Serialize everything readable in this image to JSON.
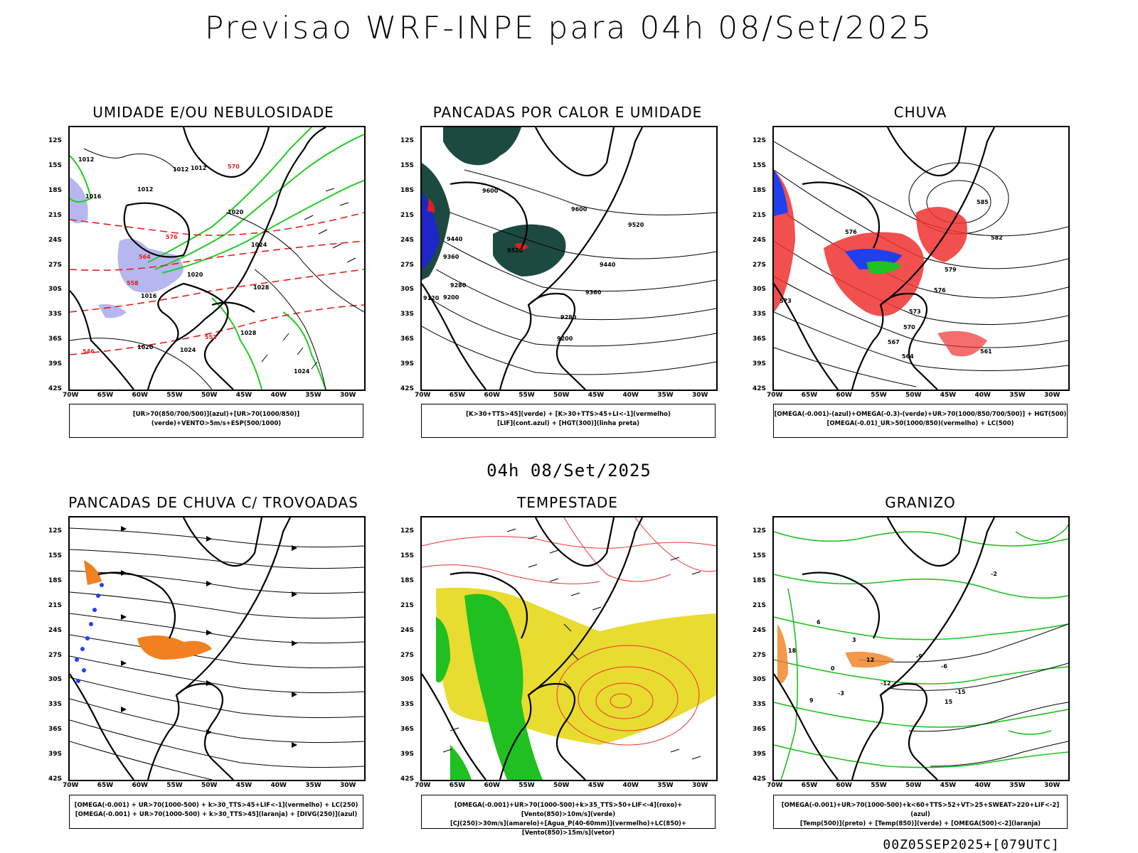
{
  "header": {
    "title": "Previsao WRF-INPE  para 04h 08/Set/2025"
  },
  "mid_label": "04h 08/Set/2025",
  "footer": "00Z05SEP2025+[079UTC]",
  "axes": {
    "lat_ticks": [
      "12S",
      "15S",
      "18S",
      "21S",
      "24S",
      "27S",
      "30S",
      "33S",
      "36S",
      "39S",
      "42S"
    ],
    "lon_ticks": [
      "70W",
      "65W",
      "60W",
      "55W",
      "50W",
      "45W",
      "40W",
      "35W",
      "30W"
    ]
  },
  "panels": [
    {
      "title": "UMIDADE E/OU NEBULOSIDADE",
      "legend": [
        "[UR>70(850/700/500)](azul)+[UR>70(1000/850)](verde)+VENTO>5m/s+ESP(500/1000)"
      ],
      "contour_labels": [
        "1012",
        "1012",
        "1016",
        "1020",
        "1020",
        "1024",
        "1028",
        "1028",
        "1020",
        "1024",
        "1024",
        "1012",
        "1012",
        "1016",
        "576",
        "570",
        "564",
        "558",
        "552",
        "546"
      ],
      "colors": {
        "blue": "#b7b7f0",
        "green": "#22cc22",
        "red": "#e02020"
      }
    },
    {
      "title": "PANCADAS POR CALOR E UMIDADE",
      "legend": [
        "[K>30+TTS>45](verde) + [K>30+TTS>45+LI<-1](vermelho)",
        "[LIF](cont.azul) + [HGT(300)](linha preta)"
      ],
      "contour_labels": [
        "9600",
        "9520",
        "9440",
        "9360",
        "9280",
        "9200",
        "9600",
        "9520",
        "9440",
        "9360",
        "9280",
        "9200",
        "9120"
      ],
      "colors": {
        "darkgreen": "#1c4a40",
        "red": "#e02020",
        "blue": "#2020e0"
      }
    },
    {
      "title": "CHUVA",
      "legend": [
        "[OMEGA(-0.001)-(azul)+OMEGA(-0.3)-(verde)+UR>70(1000/850/700/500)] + HGT(500)",
        "[OMEGA(-0.01)_UR>50(1000/850)(vermelho) + LC(500)"
      ],
      "contour_labels": [
        "585",
        "582",
        "579",
        "576",
        "573",
        "570",
        "567",
        "564",
        "561",
        "576",
        "573"
      ],
      "colors": {
        "red": "#f03030",
        "blue": "#2040f0",
        "green": "#20c020"
      }
    },
    {
      "title": "PANCADAS DE CHUVA C/ TROVOADAS",
      "legend": [
        "[OMEGA(-0.001) + UR>70(1000-500) + k>30_TTS>45+LIF<-1](vermelho) + LC(250)",
        "[OMEGA(-0.001) + UR>70(1000-500) + k>30_TTS>45](laranja) + [DIVG(250)](azul)"
      ],
      "contour_labels": [],
      "colors": {
        "orange": "#f08020",
        "blue": "#2040f0"
      }
    },
    {
      "title": "TEMPESTADE",
      "legend": [
        "[OMEGA(-0.001)+UR>70(1000-500)+k>35_TTS>50+LIF<-4](roxo)+[Vento(850)>10m/s](verde)",
        "[CJ(250)>30m/s](amarelo)+[Agua_P(40-60mm)](vermelho)+LC(850)+[Vento(850)>15m/s](vetor)"
      ],
      "contour_labels": [],
      "colors": {
        "yellow": "#e8dc30",
        "green": "#20c020",
        "red": "#f03030"
      }
    },
    {
      "title": "GRANIZO",
      "legend": [
        "[OMEGA(-0.001)+UR>70(1000-500)+k<60+TTS>52+VT>25+SWEAT>220+LIF<-2](azul)",
        "[Temp(500)](preto) + [Temp(850)](verde) + [OMEGA(500)<-2](laranja)"
      ],
      "contour_labels": [
        "-2",
        "-6",
        "-15",
        "-12",
        "-9",
        "-3",
        "0",
        "3",
        "6",
        "9",
        "12",
        "15",
        "18"
      ],
      "colors": {
        "green": "#20c020",
        "orange": "#f08020",
        "black": "#000000"
      }
    }
  ]
}
